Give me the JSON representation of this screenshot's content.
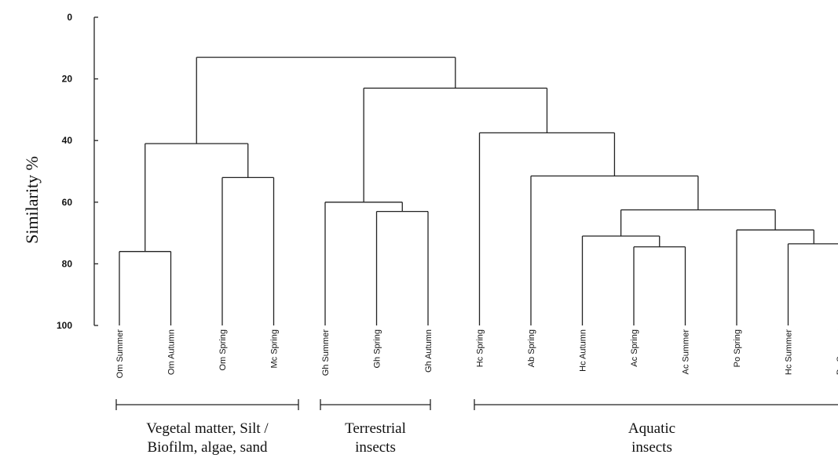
{
  "chart_data": {
    "type": "dendrogram",
    "ylabel": "Similarity %",
    "yticks": [
      0,
      20,
      40,
      60,
      80,
      100
    ],
    "ylim": [
      0,
      100
    ],
    "leaves": [
      "Om Summer",
      "Om Autumn",
      "Om Spring",
      "Mc Spring",
      "Gh Summer",
      "Gh Spring",
      "Gh Autumn",
      "Hc Spring",
      "Ab Spring",
      "Hc Autumn",
      "Ac Spring",
      "Ac Summer",
      "Po Spring",
      "Hc Summer",
      "Po Summer"
    ],
    "merges": [
      {
        "id": "n1",
        "children": [
          "Om Summer",
          "Om Autumn"
        ],
        "similarity": 76
      },
      {
        "id": "n2",
        "children": [
          "Om Spring",
          "Mc Spring"
        ],
        "similarity": 52
      },
      {
        "id": "n3",
        "children": [
          "n1",
          "n2"
        ],
        "similarity": 41
      },
      {
        "id": "n4",
        "children": [
          "Gh Spring",
          "Gh Autumn"
        ],
        "similarity": 63
      },
      {
        "id": "n5",
        "children": [
          "Gh Summer",
          "n4"
        ],
        "similarity": 60
      },
      {
        "id": "n6",
        "children": [
          "Ac Spring",
          "Ac Summer"
        ],
        "similarity": 74.5
      },
      {
        "id": "n7",
        "children": [
          "Hc Autumn",
          "n6"
        ],
        "similarity": 71
      },
      {
        "id": "n8",
        "children": [
          "Hc Summer",
          "Po Summer"
        ],
        "similarity": 73.5
      },
      {
        "id": "n9",
        "children": [
          "Po Spring",
          "n8"
        ],
        "similarity": 69
      },
      {
        "id": "n10",
        "children": [
          "n7",
          "n9"
        ],
        "similarity": 62.5
      },
      {
        "id": "n11",
        "children": [
          "Ab Spring",
          "n10"
        ],
        "similarity": 51.5
      },
      {
        "id": "n12",
        "children": [
          "Hc Spring",
          "n11"
        ],
        "similarity": 37.5
      },
      {
        "id": "n13",
        "children": [
          "n5",
          "n12"
        ],
        "similarity": 23
      },
      {
        "id": "n14",
        "children": [
          "n3",
          "n13"
        ],
        "similarity": 13
      }
    ],
    "groups": [
      {
        "name": "Vegetal matter, Silt / Biofilm, algae, sand",
        "lines": [
          "Vegetal matter, Silt /",
          "Biofilm, algae, sand"
        ],
        "first_leaf": 0,
        "last_leaf": 3
      },
      {
        "name": "Terrestrial insects",
        "lines": [
          "Terrestrial",
          "insects"
        ],
        "first_leaf": 4,
        "last_leaf": 6
      },
      {
        "name": "Aquatic insects",
        "lines": [
          "Aquatic",
          "insects"
        ],
        "first_leaf": 7,
        "last_leaf": 14
      }
    ]
  }
}
